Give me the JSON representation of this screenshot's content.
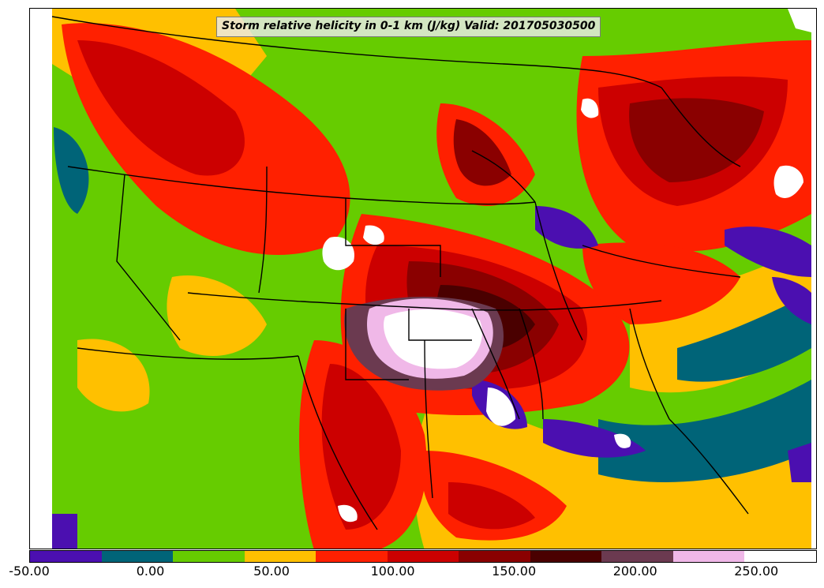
{
  "title": "Storm relative helicity in 0-1 km (J/kg) Valid: 201705030500",
  "colorbar": {
    "colors": [
      "#4b0fb0",
      "#006478",
      "#66cc00",
      "#ffc000",
      "#ff2000",
      "#cc0000",
      "#8a0000",
      "#4a0000",
      "#6b3a50",
      "#f0b8e8",
      "#ffffff"
    ],
    "min": -50,
    "max": 275,
    "tick_values": [
      -50,
      0,
      50,
      100,
      150,
      200,
      250
    ],
    "tick_labels": [
      "-50.00",
      "0.00",
      "50.00",
      "100.00",
      "150.00",
      "200.00",
      "250.00"
    ]
  },
  "map": {
    "field": "Storm relative helicity in 0-1 km",
    "units": "J/kg",
    "valid_time": "201705030500"
  }
}
